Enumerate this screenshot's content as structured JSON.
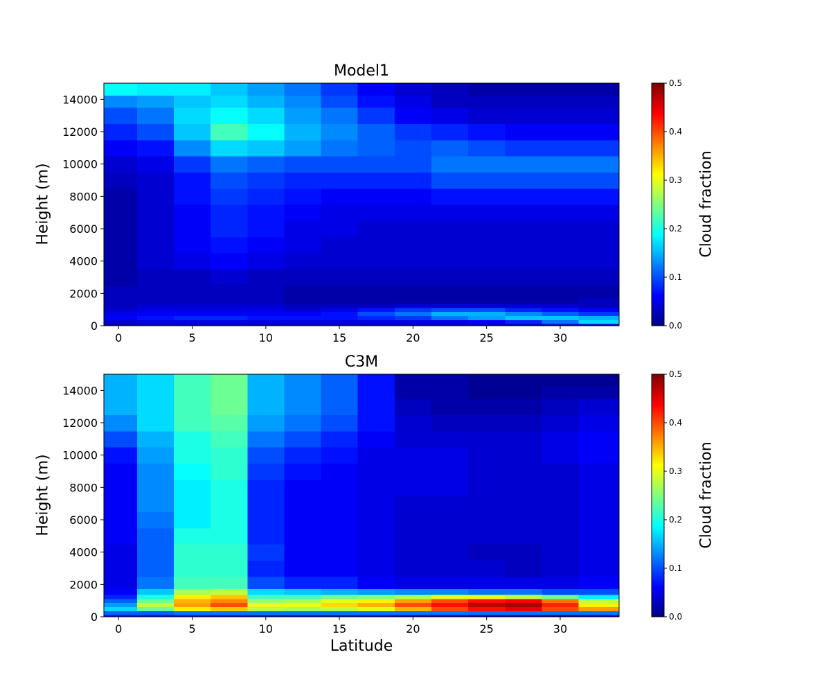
{
  "chart_data": [
    {
      "type": "heatmap",
      "title": "Model1",
      "xlabel": "",
      "ylabel": "Height (m)",
      "colorbar_label": "Cloud fraction",
      "colormap": "jet",
      "vmin": 0.0,
      "vmax": 0.5,
      "x_ticks": [
        0,
        5,
        10,
        15,
        20,
        25,
        30
      ],
      "y_ticks": [
        0,
        2000,
        4000,
        6000,
        8000,
        10000,
        12000,
        14000
      ],
      "colorbar_ticks": [
        0.0,
        0.1,
        0.2,
        0.3,
        0.4,
        0.5
      ],
      "xlim": [
        -1,
        34
      ],
      "ylim": [
        0,
        15000
      ],
      "x_centers": [
        0,
        2.5,
        5,
        7.5,
        10,
        12.5,
        15,
        17.5,
        20,
        22.5,
        25,
        27.5,
        30,
        32.5
      ],
      "height_levels": [
        0,
        250,
        500,
        750,
        1000,
        1250,
        1500,
        2000,
        3000,
        4000,
        5000,
        6000,
        7000,
        8000,
        9000,
        10000,
        11000,
        12000,
        13000,
        14000,
        14500
      ],
      "values": [
        [
          0.02,
          0.03,
          0.03,
          0.03,
          0.02,
          0.03,
          0.03,
          0.03,
          0.03,
          0.03,
          0.03,
          0.03,
          0.03,
          0.03
        ],
        [
          0.04,
          0.05,
          0.05,
          0.05,
          0.05,
          0.05,
          0.05,
          0.05,
          0.05,
          0.05,
          0.06,
          0.08,
          0.12,
          0.17
        ],
        [
          0.06,
          0.07,
          0.08,
          0.08,
          0.07,
          0.07,
          0.07,
          0.08,
          0.09,
          0.12,
          0.14,
          0.16,
          0.16,
          0.15
        ],
        [
          0.05,
          0.06,
          0.06,
          0.06,
          0.06,
          0.06,
          0.07,
          0.1,
          0.12,
          0.15,
          0.15,
          0.13,
          0.11,
          0.09
        ],
        [
          0.04,
          0.05,
          0.05,
          0.05,
          0.05,
          0.04,
          0.05,
          0.07,
          0.09,
          0.1,
          0.1,
          0.08,
          0.07,
          0.06
        ],
        [
          0.03,
          0.04,
          0.04,
          0.04,
          0.04,
          0.03,
          0.03,
          0.03,
          0.04,
          0.04,
          0.04,
          0.04,
          0.04,
          0.03
        ],
        [
          0.03,
          0.03,
          0.03,
          0.03,
          0.03,
          0.02,
          0.02,
          0.02,
          0.02,
          0.02,
          0.02,
          0.02,
          0.02,
          0.03
        ],
        [
          0.03,
          0.03,
          0.03,
          0.03,
          0.03,
          0.02,
          0.02,
          0.02,
          0.02,
          0.02,
          0.02,
          0.02,
          0.02,
          0.02
        ],
        [
          0.02,
          0.03,
          0.03,
          0.04,
          0.03,
          0.03,
          0.03,
          0.03,
          0.03,
          0.03,
          0.03,
          0.03,
          0.03,
          0.03
        ],
        [
          0.02,
          0.04,
          0.05,
          0.06,
          0.05,
          0.04,
          0.04,
          0.04,
          0.04,
          0.04,
          0.04,
          0.04,
          0.04,
          0.04
        ],
        [
          0.02,
          0.04,
          0.06,
          0.07,
          0.06,
          0.05,
          0.04,
          0.04,
          0.04,
          0.04,
          0.04,
          0.04,
          0.04,
          0.04
        ],
        [
          0.02,
          0.04,
          0.06,
          0.08,
          0.07,
          0.05,
          0.05,
          0.04,
          0.04,
          0.04,
          0.04,
          0.04,
          0.04,
          0.04
        ],
        [
          0.02,
          0.04,
          0.06,
          0.08,
          0.07,
          0.06,
          0.05,
          0.05,
          0.05,
          0.05,
          0.05,
          0.05,
          0.05,
          0.05
        ],
        [
          0.02,
          0.04,
          0.07,
          0.09,
          0.08,
          0.07,
          0.06,
          0.06,
          0.06,
          0.07,
          0.07,
          0.07,
          0.07,
          0.07
        ],
        [
          0.03,
          0.04,
          0.07,
          0.1,
          0.09,
          0.08,
          0.08,
          0.08,
          0.08,
          0.1,
          0.1,
          0.1,
          0.1,
          0.1
        ],
        [
          0.04,
          0.05,
          0.09,
          0.12,
          0.11,
          0.1,
          0.1,
          0.1,
          0.1,
          0.12,
          0.12,
          0.12,
          0.12,
          0.12
        ],
        [
          0.06,
          0.07,
          0.13,
          0.17,
          0.16,
          0.14,
          0.12,
          0.11,
          0.1,
          0.11,
          0.1,
          0.09,
          0.09,
          0.09
        ],
        [
          0.08,
          0.1,
          0.16,
          0.22,
          0.19,
          0.15,
          0.13,
          0.11,
          0.09,
          0.08,
          0.07,
          0.06,
          0.06,
          0.06
        ],
        [
          0.1,
          0.12,
          0.17,
          0.19,
          0.17,
          0.14,
          0.12,
          0.09,
          0.06,
          0.05,
          0.04,
          0.04,
          0.04,
          0.04
        ],
        [
          0.13,
          0.14,
          0.16,
          0.17,
          0.15,
          0.13,
          0.1,
          0.07,
          0.05,
          0.03,
          0.03,
          0.03,
          0.03,
          0.03
        ],
        [
          0.19,
          0.18,
          0.18,
          0.16,
          0.14,
          0.12,
          0.09,
          0.06,
          0.04,
          0.03,
          0.02,
          0.02,
          0.02,
          0.02
        ]
      ]
    },
    {
      "type": "heatmap",
      "title": "C3M",
      "xlabel": "Latitude",
      "ylabel": "Height (m)",
      "colorbar_label": "Cloud fraction",
      "colormap": "jet",
      "vmin": 0.0,
      "vmax": 0.5,
      "x_ticks": [
        0,
        5,
        10,
        15,
        20,
        25,
        30
      ],
      "y_ticks": [
        0,
        2000,
        4000,
        6000,
        8000,
        10000,
        12000,
        14000
      ],
      "colorbar_ticks": [
        0.0,
        0.1,
        0.2,
        0.3,
        0.4,
        0.5
      ],
      "xlim": [
        -1,
        34
      ],
      "ylim": [
        0,
        15000
      ],
      "x_centers": [
        0,
        2.5,
        5,
        7.5,
        10,
        12.5,
        15,
        17.5,
        20,
        22.5,
        25,
        27.5,
        30,
        32.5
      ],
      "height_levels": [
        0,
        250,
        500,
        750,
        1000,
        1250,
        1500,
        2000,
        3000,
        4000,
        5000,
        6000,
        7000,
        8000,
        9000,
        10000,
        11000,
        12000,
        13000,
        14000,
        14500
      ],
      "values": [
        [
          0.07,
          0.07,
          0.07,
          0.07,
          0.07,
          0.07,
          0.07,
          0.07,
          0.06,
          0.06,
          0.05,
          0.05,
          0.04,
          0.05
        ],
        [
          0.11,
          0.11,
          0.12,
          0.12,
          0.12,
          0.12,
          0.12,
          0.12,
          0.12,
          0.12,
          0.12,
          0.12,
          0.12,
          0.12
        ],
        [
          0.17,
          0.24,
          0.32,
          0.34,
          0.28,
          0.27,
          0.28,
          0.3,
          0.35,
          0.4,
          0.43,
          0.45,
          0.4,
          0.36
        ],
        [
          0.14,
          0.28,
          0.36,
          0.4,
          0.3,
          0.3,
          0.33,
          0.35,
          0.4,
          0.43,
          0.47,
          0.48,
          0.42,
          0.32
        ],
        [
          0.11,
          0.24,
          0.35,
          0.37,
          0.26,
          0.27,
          0.3,
          0.32,
          0.36,
          0.4,
          0.43,
          0.44,
          0.38,
          0.28
        ],
        [
          0.08,
          0.2,
          0.32,
          0.34,
          0.22,
          0.22,
          0.24,
          0.25,
          0.27,
          0.3,
          0.3,
          0.28,
          0.24,
          0.18
        ],
        [
          0.06,
          0.16,
          0.27,
          0.28,
          0.17,
          0.16,
          0.15,
          0.14,
          0.13,
          0.13,
          0.12,
          0.12,
          0.1,
          0.1
        ],
        [
          0.05,
          0.12,
          0.22,
          0.22,
          0.1,
          0.08,
          0.08,
          0.06,
          0.05,
          0.05,
          0.05,
          0.05,
          0.05,
          0.06
        ],
        [
          0.05,
          0.11,
          0.21,
          0.21,
          0.08,
          0.06,
          0.06,
          0.05,
          0.04,
          0.04,
          0.04,
          0.03,
          0.04,
          0.05
        ],
        [
          0.05,
          0.11,
          0.21,
          0.21,
          0.09,
          0.06,
          0.06,
          0.05,
          0.04,
          0.04,
          0.03,
          0.03,
          0.04,
          0.05
        ],
        [
          0.06,
          0.11,
          0.2,
          0.2,
          0.08,
          0.06,
          0.06,
          0.05,
          0.04,
          0.04,
          0.04,
          0.04,
          0.04,
          0.05
        ],
        [
          0.06,
          0.12,
          0.18,
          0.2,
          0.08,
          0.06,
          0.06,
          0.05,
          0.04,
          0.04,
          0.04,
          0.04,
          0.04,
          0.05
        ],
        [
          0.06,
          0.13,
          0.18,
          0.2,
          0.08,
          0.06,
          0.06,
          0.05,
          0.04,
          0.04,
          0.04,
          0.04,
          0.04,
          0.05
        ],
        [
          0.06,
          0.13,
          0.18,
          0.2,
          0.08,
          0.06,
          0.06,
          0.05,
          0.05,
          0.05,
          0.04,
          0.04,
          0.04,
          0.05
        ],
        [
          0.06,
          0.13,
          0.19,
          0.21,
          0.09,
          0.07,
          0.06,
          0.05,
          0.05,
          0.05,
          0.04,
          0.04,
          0.04,
          0.05
        ],
        [
          0.07,
          0.14,
          0.2,
          0.21,
          0.1,
          0.08,
          0.07,
          0.05,
          0.05,
          0.05,
          0.04,
          0.04,
          0.05,
          0.06
        ],
        [
          0.1,
          0.15,
          0.2,
          0.22,
          0.12,
          0.1,
          0.08,
          0.06,
          0.04,
          0.04,
          0.04,
          0.04,
          0.05,
          0.06
        ],
        [
          0.13,
          0.17,
          0.22,
          0.23,
          0.14,
          0.12,
          0.1,
          0.07,
          0.04,
          0.03,
          0.03,
          0.03,
          0.04,
          0.05
        ],
        [
          0.15,
          0.17,
          0.22,
          0.24,
          0.15,
          0.13,
          0.11,
          0.07,
          0.03,
          0.02,
          0.02,
          0.02,
          0.03,
          0.04
        ],
        [
          0.15,
          0.17,
          0.22,
          0.24,
          0.15,
          0.13,
          0.11,
          0.07,
          0.02,
          0.02,
          0.01,
          0.01,
          0.02,
          0.02
        ],
        [
          0.15,
          0.17,
          0.22,
          0.24,
          0.15,
          0.13,
          0.11,
          0.07,
          0.02,
          0.02,
          0.01,
          0.01,
          0.01,
          0.01
        ]
      ]
    }
  ]
}
